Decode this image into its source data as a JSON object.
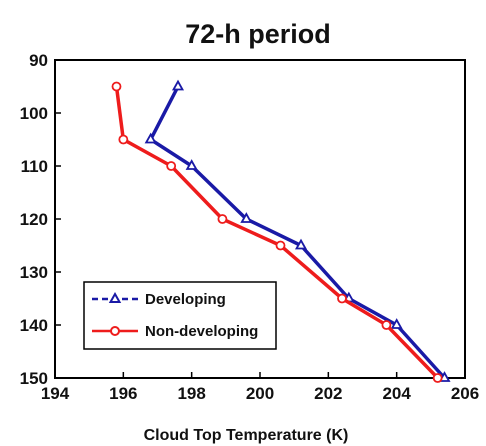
{
  "chart_data": {
    "type": "line",
    "title": "72-h period",
    "xlabel": "Cloud Top Temperature (K)",
    "ylabel": "",
    "xlim": [
      194,
      206
    ],
    "ylim": [
      90,
      150
    ],
    "y_inverted": true,
    "xticks": [
      "194",
      "196",
      "198",
      "200",
      "202",
      "204",
      "206"
    ],
    "yticks": [
      "90",
      "100",
      "110",
      "120",
      "130",
      "140",
      "150"
    ],
    "grid": false,
    "legend_position": "bottom-left",
    "series": [
      {
        "name": "Developing",
        "color": "#1a1aa6",
        "line_style": "dashed-in-legend-solid-in-plot",
        "marker": "triangle",
        "x": [
          197.6,
          196.8,
          198.0,
          199.6,
          201.2,
          202.6,
          204.0,
          205.4
        ],
        "y": [
          95,
          105,
          110,
          120,
          125,
          135,
          140,
          150
        ]
      },
      {
        "name": "Non-developing",
        "color": "#ee1c1c",
        "line_style": "solid",
        "marker": "circle",
        "x": [
          195.8,
          196.0,
          197.4,
          198.9,
          200.6,
          202.4,
          203.7,
          205.2
        ],
        "y": [
          95,
          105,
          110,
          120,
          125,
          135,
          140,
          150
        ]
      }
    ]
  }
}
